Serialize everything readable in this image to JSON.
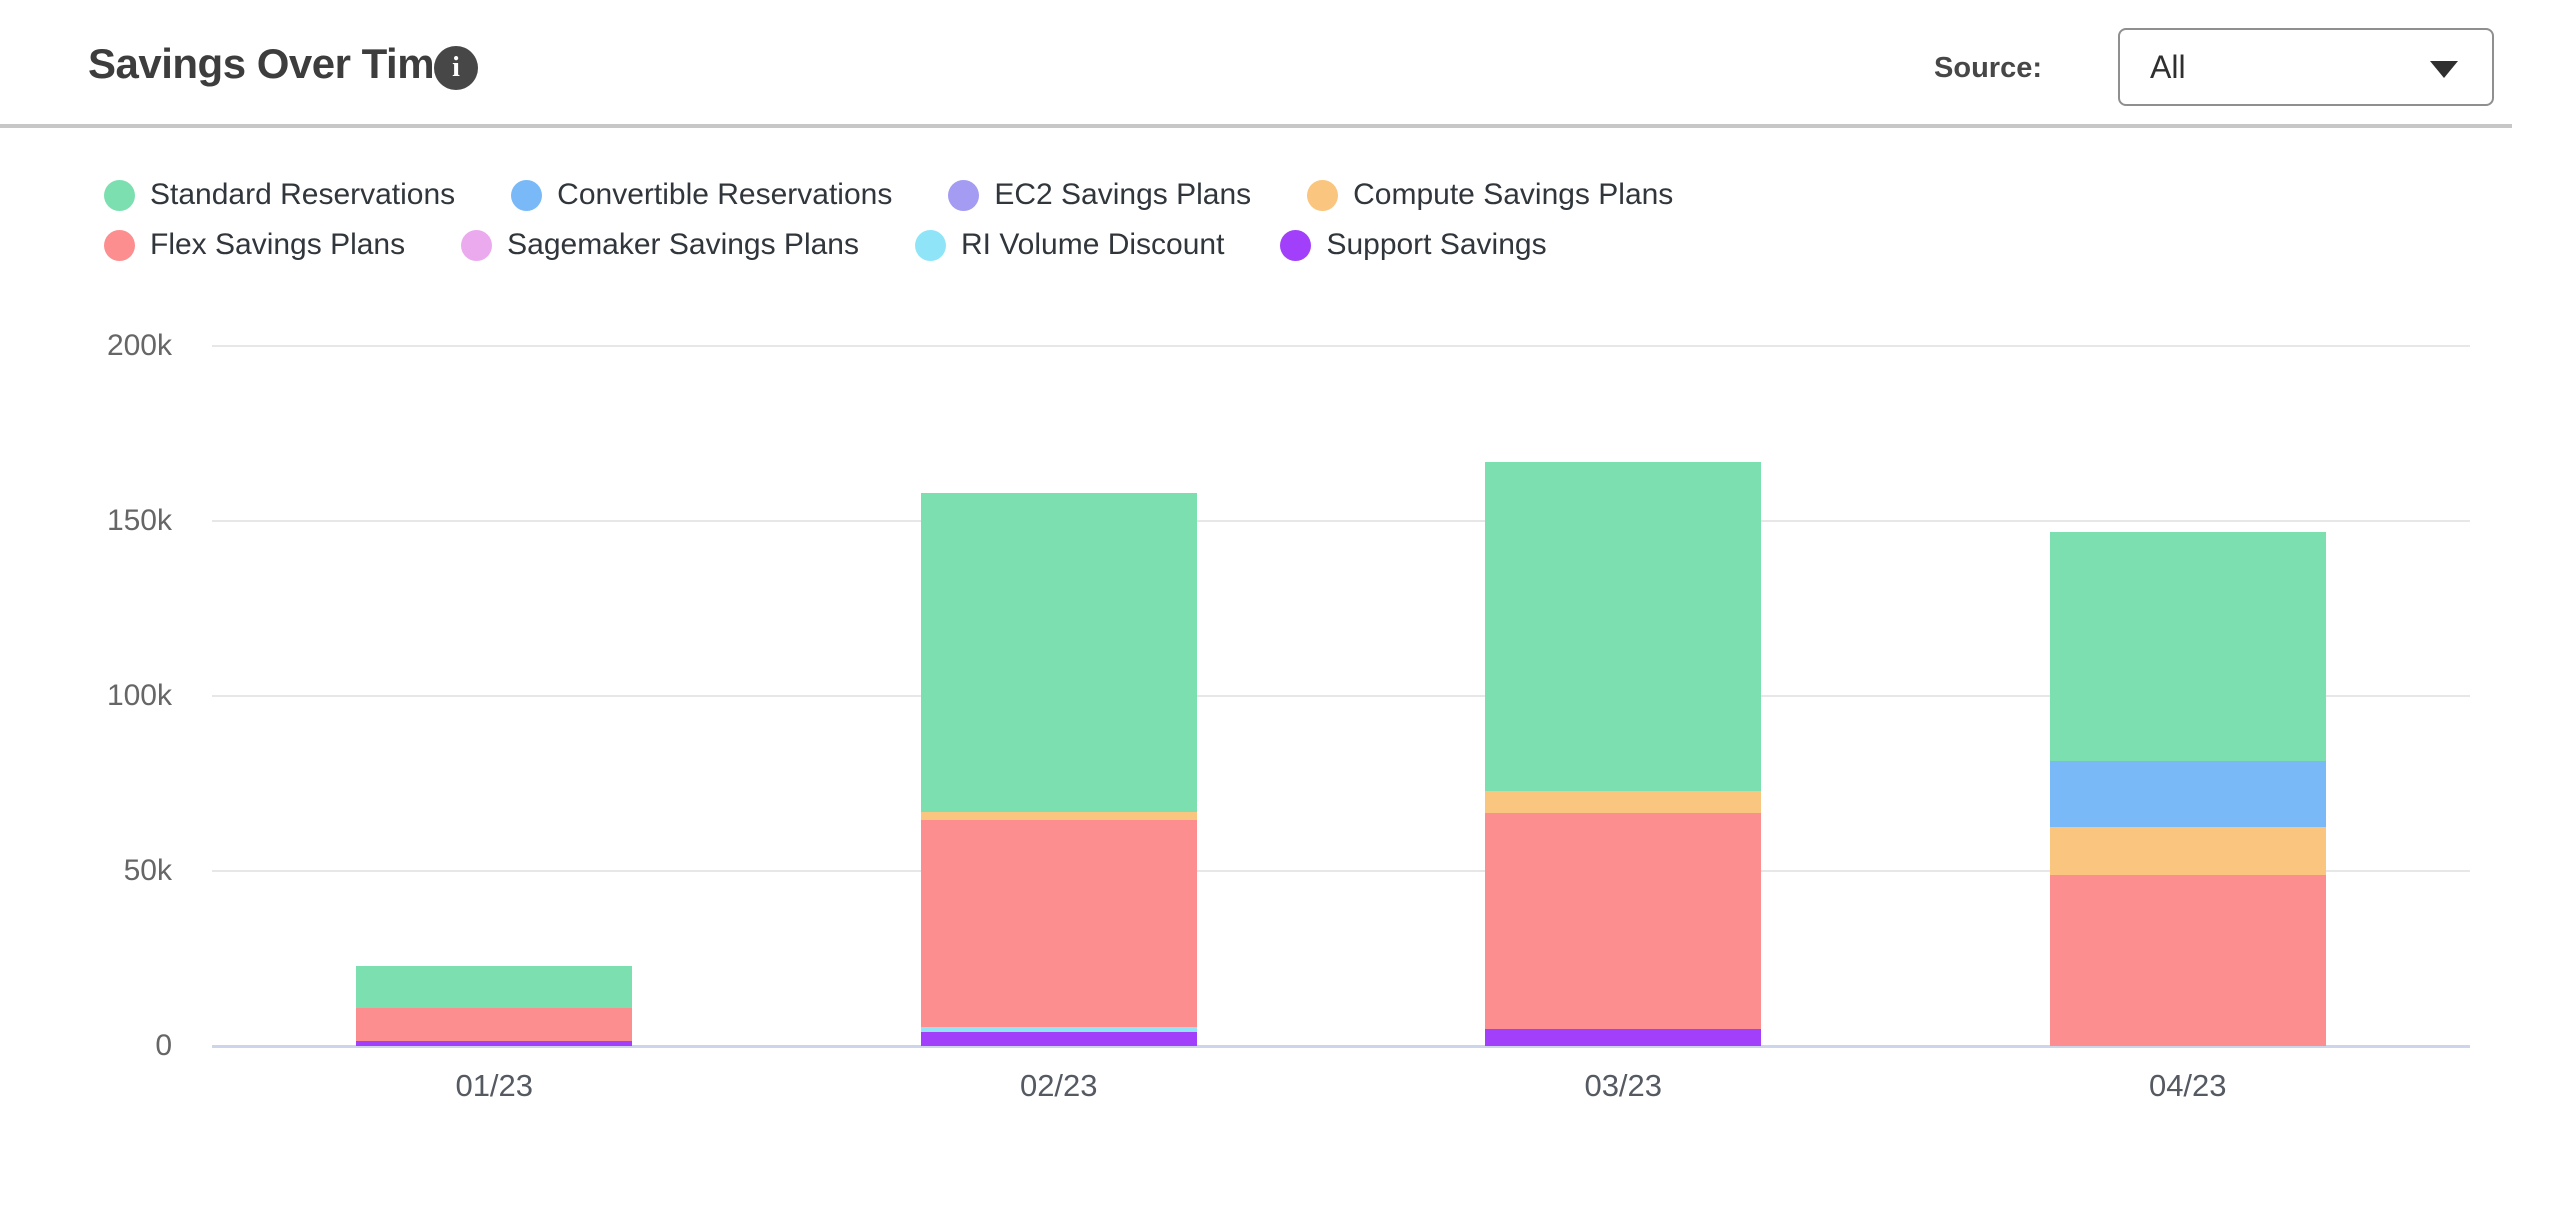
{
  "header": {
    "title": "Savings Over Time",
    "info_icon": "i",
    "source_label": "Source:",
    "source_value": "All"
  },
  "chart_data": {
    "type": "bar",
    "stacked": true,
    "title": "Savings Over Time",
    "categories": [
      "01/23",
      "02/23",
      "03/23",
      "04/23"
    ],
    "series": [
      {
        "name": "Standard Reservations",
        "color": "#7cdfb0",
        "values": [
          12000,
          91000,
          94000,
          65500
        ]
      },
      {
        "name": "Convertible Reservations",
        "color": "#79b9f8",
        "values": [
          0,
          0,
          0,
          19000
        ]
      },
      {
        "name": "EC2 Savings Plans",
        "color": "#a49bf2",
        "values": [
          0,
          0,
          0,
          0
        ]
      },
      {
        "name": "Compute Savings Plans",
        "color": "#f9c57f",
        "values": [
          0,
          2500,
          6500,
          13500
        ]
      },
      {
        "name": "Flex Savings Plans",
        "color": "#fd8e8f",
        "values": [
          9500,
          59000,
          61500,
          49000
        ]
      },
      {
        "name": "Sagemaker Savings Plans",
        "color": "#ebaaee",
        "values": [
          0,
          0,
          0,
          0
        ]
      },
      {
        "name": "RI Volume Discount",
        "color": "#8fe5f7",
        "values": [
          0,
          1500,
          0,
          0
        ]
      },
      {
        "name": "Support Savings",
        "color": "#a13ffb",
        "values": [
          1500,
          4000,
          5000,
          0
        ]
      }
    ],
    "stack_order_bottom_to_top": [
      "Support Savings",
      "RI Volume Discount",
      "Sagemaker Savings Plans",
      "Flex Savings Plans",
      "Compute Savings Plans",
      "EC2 Savings Plans",
      "Convertible Reservations",
      "Standard Reservations"
    ],
    "totals": [
      23000,
      158000,
      167000,
      147000
    ],
    "ylim": [
      0,
      200000
    ],
    "yticks": [
      "0",
      "50k",
      "100k",
      "150k",
      "200k"
    ],
    "grid": true,
    "legend_position": "top"
  },
  "colors": {
    "gridline": "#e7e7e7",
    "x_axis_line": "#cdd5ea",
    "y_label": "#666666",
    "x_label": "#555a62",
    "header_divider": "#c7c7c7"
  }
}
